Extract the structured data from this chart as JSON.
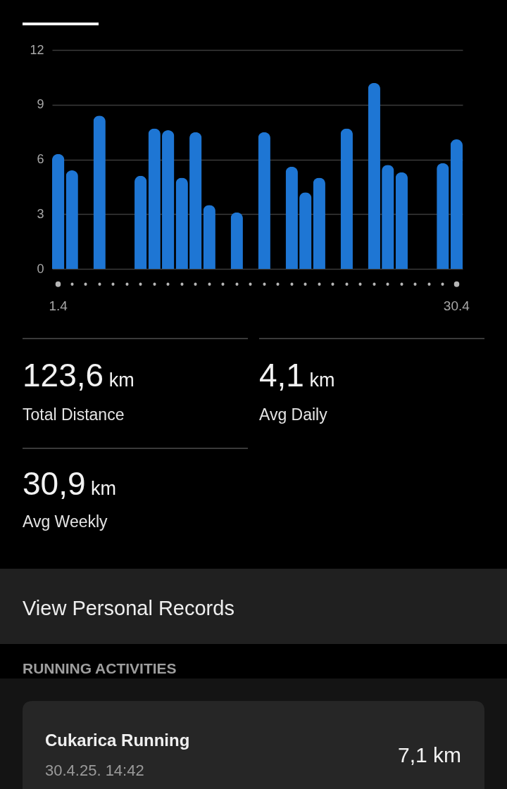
{
  "chart_data": [
    {
      "type": "bar",
      "categories": [
        "1.4",
        null,
        null,
        null,
        null,
        null,
        null,
        null,
        null,
        null,
        null,
        null,
        null,
        null,
        null,
        null,
        null,
        null,
        null,
        null,
        null,
        null,
        null,
        null,
        null,
        null,
        null,
        null,
        null,
        "30.4"
      ],
      "values": [
        6.3,
        5.4,
        null,
        8.4,
        null,
        null,
        5.1,
        7.7,
        7.6,
        5.0,
        7.5,
        3.5,
        null,
        3.1,
        null,
        7.5,
        null,
        5.6,
        4.2,
        5.0,
        null,
        7.7,
        null,
        10.2,
        5.7,
        5.3,
        null,
        null,
        5.8,
        7.1
      ],
      "color": "#1e76d4",
      "ylim": [
        0,
        12
      ],
      "yticks": [
        0,
        3,
        6,
        9,
        12
      ],
      "grid": "y"
    },
    {
      "type": "other",
      "annotations": [
        "123,6 km",
        "Total Distance",
        "4,1 km",
        "Avg Daily",
        "30,9 km",
        "Avg Weekly",
        "View Personal Records",
        "RUNNING ACTIVITIES",
        "Cukarica Running",
        "30.4.25. 14:42",
        "7,1 km"
      ]
    }
  ]
}
